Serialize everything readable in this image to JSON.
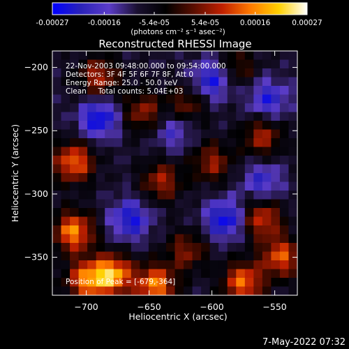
{
  "colorbar": {
    "tick_labels": [
      "-0.00027",
      "-0.00016",
      "-5.4e-05",
      "5.4e-05",
      "0.00016",
      "0.00027"
    ],
    "tick_values": [
      -0.00027,
      -0.00016,
      -5.4e-05,
      5.4e-05,
      0.00016,
      0.00027
    ],
    "range": [
      -0.00027,
      0.00027
    ],
    "unit_label": "(photons cm⁻² s⁻¹ asec⁻²)",
    "colors": [
      "#0000ff",
      "#2a22b8",
      "#5b3cc8",
      "#1a1030",
      "#000000",
      "#5a0e00",
      "#c02000",
      "#ff7a00",
      "#ffd000",
      "#ffffff"
    ]
  },
  "chart_data": {
    "type": "heatmap",
    "title": "Reconstructed RHESSI Image",
    "xlabel": "Heliocentric X (arcsec)",
    "ylabel": "Heliocentric Y (arcsec)",
    "xlim": [
      -727,
      -532
    ],
    "ylim": [
      -380,
      -187
    ],
    "x_ticks": [
      -700,
      -650,
      -600,
      -550
    ],
    "x_tick_labels": [
      "−700",
      "−650",
      "−600",
      "−550"
    ],
    "y_ticks": [
      -200,
      -250,
      -300,
      -350
    ],
    "y_tick_labels": [
      "−200",
      "−250",
      "−300",
      "−350"
    ],
    "annotations": [
      "22-Nov-2003 09:48:00.000 to 09:54:00.000",
      "Detectors: 3F 4F 5F 6F 7F 8F, Att 0",
      "Energy Range: 25.0 - 50.0 keV",
      "Clean     Total counts: 5.04E+03"
    ],
    "peak_label": "Position of Peak = [-679,-364]",
    "peak": {
      "x": -679,
      "y": -364
    },
    "grid": false,
    "image": {
      "nx": 28,
      "ny": 28,
      "value_range": [
        -0.00027,
        0.00027
      ],
      "hot_spots": [
        {
          "x": -690,
          "y": -208,
          "amp": 0.00016
        },
        {
          "x": -655,
          "y": -235,
          "amp": 0.00014
        },
        {
          "x": -620,
          "y": -230,
          "amp": 0.00012
        },
        {
          "x": -580,
          "y": -200,
          "amp": 0.0001
        },
        {
          "x": -560,
          "y": -255,
          "amp": 0.00015
        },
        {
          "x": -710,
          "y": -275,
          "amp": 0.00022
        },
        {
          "x": -710,
          "y": -330,
          "amp": 0.00024
        },
        {
          "x": -640,
          "y": -290,
          "amp": 0.00015
        },
        {
          "x": -600,
          "y": -275,
          "amp": 0.00014
        },
        {
          "x": -560,
          "y": -320,
          "amp": 0.00018
        },
        {
          "x": -620,
          "y": -345,
          "amp": 0.00013
        },
        {
          "x": -700,
          "y": -368,
          "amp": 0.00022
        },
        {
          "x": -679,
          "y": -364,
          "amp": 0.00027
        },
        {
          "x": -645,
          "y": -372,
          "amp": 0.00024
        },
        {
          "x": -575,
          "y": -370,
          "amp": 0.00022
        },
        {
          "x": -545,
          "y": -350,
          "amp": 0.0002
        }
      ],
      "cold_spots": [
        {
          "x": -690,
          "y": -240,
          "amp": -0.00018
        },
        {
          "x": -600,
          "y": -210,
          "amp": -0.00016
        },
        {
          "x": -555,
          "y": -225,
          "amp": -0.00014
        },
        {
          "x": -665,
          "y": -320,
          "amp": -0.00016
        },
        {
          "x": -590,
          "y": -320,
          "amp": -0.00018
        },
        {
          "x": -560,
          "y": -290,
          "amp": -0.00012
        },
        {
          "x": -630,
          "y": -250,
          "amp": -0.0001
        }
      ]
    }
  },
  "footer": {
    "timestamp": "7-May-2022 07:32"
  }
}
